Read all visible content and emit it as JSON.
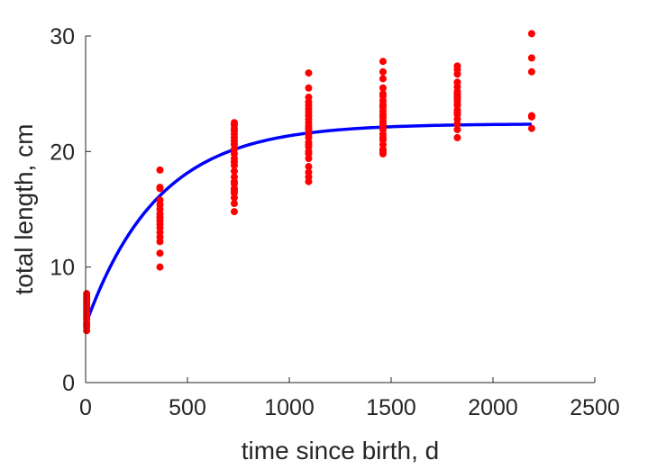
{
  "chart_data": {
    "type": "scatter",
    "xlabel": "time since birth, d",
    "ylabel": "total length, cm",
    "xlim": [
      0,
      2500
    ],
    "ylim": [
      0,
      30
    ],
    "xticks": [
      0,
      500,
      1000,
      1500,
      2000,
      2500
    ],
    "yticks": [
      0,
      10,
      20,
      30
    ],
    "grid": false,
    "colors": {
      "points": "#ff0000",
      "fit": "#0000ff",
      "axis": "#262626"
    },
    "series": [
      {
        "type": "scatter",
        "x": [
          5,
          5,
          5,
          5,
          5,
          5,
          5,
          5,
          5,
          5,
          5,
          5,
          5,
          5,
          5,
          5,
          365,
          365,
          365,
          365,
          365,
          365,
          365,
          365,
          365,
          365,
          365,
          365,
          365,
          365,
          365,
          365,
          730,
          730,
          730,
          730,
          730,
          730,
          730,
          730,
          730,
          730,
          730,
          730,
          730,
          730,
          730,
          730,
          730,
          730,
          730,
          730,
          730,
          730,
          730,
          1095,
          1095,
          1095,
          1095,
          1095,
          1095,
          1095,
          1095,
          1095,
          1095,
          1095,
          1095,
          1095,
          1095,
          1095,
          1095,
          1095,
          1095,
          1095,
          1095,
          1095,
          1095,
          1095,
          1095,
          1095,
          1460,
          1460,
          1460,
          1460,
          1460,
          1460,
          1460,
          1460,
          1460,
          1460,
          1460,
          1460,
          1460,
          1460,
          1460,
          1460,
          1460,
          1460,
          1460,
          1460,
          1460,
          1460,
          1460,
          1460,
          1460,
          1825,
          1825,
          1825,
          1825,
          1825,
          1825,
          1825,
          1825,
          1825,
          1825,
          1825,
          1825,
          1825,
          1825,
          1825,
          1825,
          1825,
          1825,
          1825,
          2190,
          2190,
          2190,
          2190,
          2190,
          2190
        ],
        "y": [
          4.5,
          4.8,
          5.0,
          5.2,
          5.5,
          5.7,
          5.9,
          6.1,
          6.3,
          6.5,
          6.7,
          6.9,
          7.1,
          7.3,
          7.5,
          7.7,
          10.0,
          11.2,
          12.2,
          12.6,
          13.0,
          13.4,
          13.7,
          14.0,
          14.3,
          14.6,
          15.0,
          15.4,
          15.8,
          16.8,
          16.9,
          18.4,
          14.8,
          15.5,
          16.0,
          16.4,
          16.8,
          17.2,
          17.8,
          18.3,
          18.8,
          19.4,
          19.8,
          20.2,
          20.6,
          20.9,
          21.2,
          21.5,
          21.8,
          22.0,
          22.3,
          22.5,
          16.6,
          17.4,
          19.1,
          17.4,
          17.8,
          18.2,
          18.7,
          19.4,
          20.0,
          20.4,
          20.8,
          21.2,
          21.5,
          21.9,
          22.2,
          22.5,
          22.8,
          23.1,
          23.4,
          23.7,
          24.0,
          24.3,
          24.7,
          25.5,
          26.8,
          19.8,
          20.6,
          22.0,
          19.8,
          20.2,
          20.6,
          21.0,
          21.5,
          21.9,
          22.2,
          22.6,
          22.9,
          23.2,
          23.5,
          23.8,
          24.1,
          24.4,
          24.8,
          25.5,
          26.3,
          26.9,
          27.8,
          20.0,
          21.2,
          22.4,
          23.0,
          24.0,
          25.0,
          21.2,
          21.9,
          22.4,
          22.8,
          23.2,
          23.6,
          24.0,
          24.4,
          24.8,
          25.2,
          25.6,
          26.0,
          26.7,
          27.1,
          27.4,
          23.4,
          24.1,
          24.6,
          25.0,
          22.0,
          23.0,
          26.9,
          28.1,
          30.2,
          23.1
        ]
      },
      {
        "type": "line",
        "model": "y = 22.4 - 17.4*exp(-0.00282*x)",
        "linf": 22.4,
        "l0": 5.0,
        "k": 0.00282,
        "x_range": [
          0,
          2190
        ]
      }
    ]
  }
}
